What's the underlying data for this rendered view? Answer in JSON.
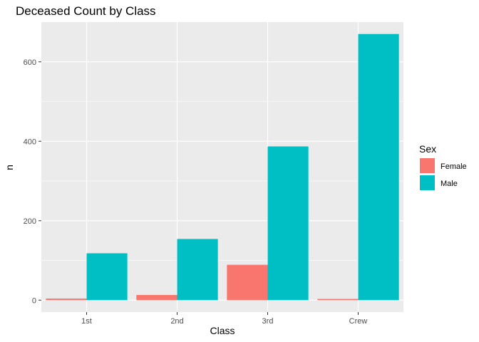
{
  "chart_data": {
    "type": "bar",
    "title": "Deceased Count by Class",
    "xlabel": "Class",
    "ylabel": "n",
    "categories": [
      "1st",
      "2nd",
      "3rd",
      "Crew"
    ],
    "series": [
      {
        "name": "Female",
        "color": "#F8766D",
        "values": [
          4,
          13,
          89,
          3
        ]
      },
      {
        "name": "Male",
        "color": "#00BFC4",
        "values": [
          118,
          154,
          387,
          670
        ]
      }
    ],
    "ylim": [
      -30,
      700
    ],
    "yticks": [
      0,
      200,
      400,
      600
    ],
    "legend": {
      "title": "Sex",
      "position": "right"
    },
    "grid": true,
    "panel_background": "#EBEBEB"
  }
}
